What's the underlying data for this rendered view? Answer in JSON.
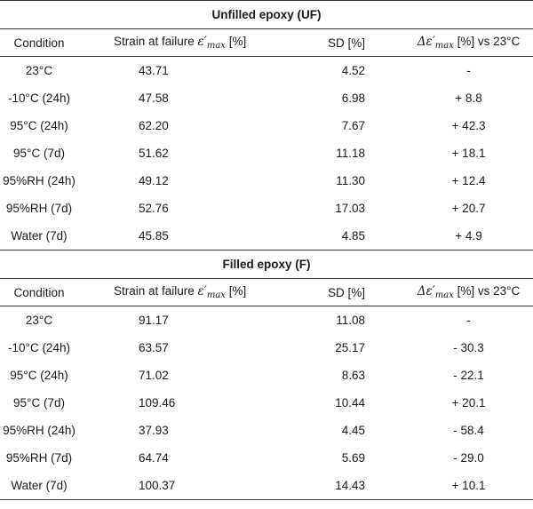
{
  "sections": [
    {
      "title": "Unfilled epoxy (UF)",
      "headers": {
        "condition": "Condition",
        "strain_prefix": "Strain at failure ",
        "strain_symbol": "ε′",
        "strain_sub": "max",
        "strain_unit": " [%]",
        "sd": "SD [%]",
        "delta_prefix": "Δε′",
        "delta_sub": "max",
        "delta_suffix": " [%] vs 23°C"
      },
      "rows": [
        {
          "condition": "23°C",
          "strain": "43.71",
          "sd": "4.52",
          "delta": "-"
        },
        {
          "condition": "-10°C (24h)",
          "strain": "47.58",
          "sd": "6.98",
          "delta": "+ 8.8"
        },
        {
          "condition": "95°C (24h)",
          "strain": "62.20",
          "sd": "7.67",
          "delta": "+ 42.3"
        },
        {
          "condition": "95°C (7d)",
          "strain": "51.62",
          "sd": "11.18",
          "delta": "+ 18.1"
        },
        {
          "condition": "95%RH (24h)",
          "strain": "49.12",
          "sd": "11.30",
          "delta": "+ 12.4"
        },
        {
          "condition": "95%RH (7d)",
          "strain": "52.76",
          "sd": "17.03",
          "delta": "+ 20.7"
        },
        {
          "condition": "Water (7d)",
          "strain": "45.85",
          "sd": "4.85",
          "delta": "+ 4.9"
        }
      ]
    },
    {
      "title": "Filled epoxy (F)",
      "headers": {
        "condition": "Condition",
        "strain_prefix": "Strain at failure ",
        "strain_symbol": "ε′",
        "strain_sub": "max",
        "strain_unit": " [%]",
        "sd": "SD [%]",
        "delta_prefix": "Δε′",
        "delta_sub": "max",
        "delta_suffix": " [%] vs 23°C"
      },
      "rows": [
        {
          "condition": "23°C",
          "strain": "91.17",
          "sd": "11.08",
          "delta": "-"
        },
        {
          "condition": "-10°C (24h)",
          "strain": "63.57",
          "sd": "25.17",
          "delta": "- 30.3"
        },
        {
          "condition": "95°C (24h)",
          "strain": "71.02",
          "sd": "8.63",
          "delta": "- 22.1"
        },
        {
          "condition": "95°C (7d)",
          "strain": "109.46",
          "sd": "10.44",
          "delta": "+ 20.1"
        },
        {
          "condition": "95%RH (24h)",
          "strain": "37.93",
          "sd": "4.45",
          "delta": "- 58.4"
        },
        {
          "condition": "95%RH (7d)",
          "strain": "64.74",
          "sd": "5.69",
          "delta": "- 29.0"
        },
        {
          "condition": "Water (7d)",
          "strain": "100.37",
          "sd": "14.43",
          "delta": "+ 10.1"
        }
      ]
    }
  ]
}
